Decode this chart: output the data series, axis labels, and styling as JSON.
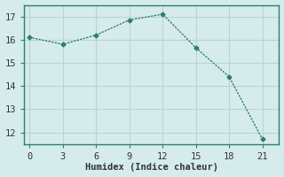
{
  "x": [
    0,
    3,
    6,
    9,
    12,
    15,
    18,
    21
  ],
  "y": [
    16.1,
    15.8,
    16.2,
    16.85,
    17.1,
    15.65,
    14.4,
    11.7
  ],
  "line_color": "#2e7d72",
  "marker": "D",
  "marker_size": 2.5,
  "line_width": 1.0,
  "xlabel": "Humidex (Indice chaleur)",
  "xlim": [
    -0.5,
    22.5
  ],
  "ylim": [
    11.5,
    17.5
  ],
  "xticks": [
    0,
    3,
    6,
    9,
    12,
    15,
    18,
    21
  ],
  "yticks": [
    12,
    13,
    14,
    15,
    16,
    17
  ],
  "bg_color": "#d6ecec",
  "grid_color": "#b8d4d4",
  "spine_color": "#2e7d72",
  "label_fontsize": 7.5,
  "tick_fontsize": 7.5,
  "tick_color": "#333333",
  "font_family": "monospace"
}
